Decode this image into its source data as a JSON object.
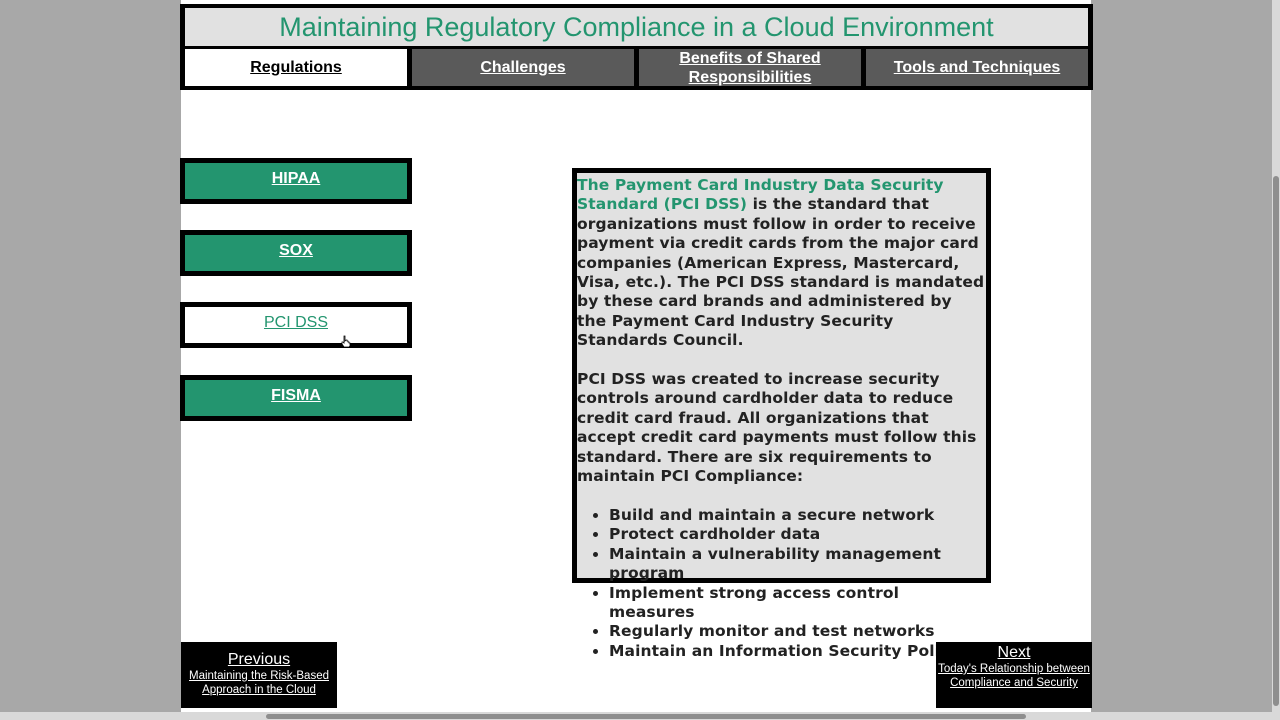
{
  "header": {
    "title": "Maintaining Regulatory Compliance in a Cloud Environment"
  },
  "tabs": [
    {
      "label": "Regulations"
    },
    {
      "label": "Challenges"
    },
    {
      "label": "Benefits of Shared Responsibilities"
    },
    {
      "label": "Tools and Techniques"
    }
  ],
  "sidebar": {
    "items": [
      {
        "label": "HIPAA"
      },
      {
        "label": "SOX"
      },
      {
        "label": "PCI DSS"
      },
      {
        "label": "FISMA"
      }
    ]
  },
  "content": {
    "highlight": "The Payment Card Industry Data Security Standard (PCI DSS)",
    "p1_rest": " is the standard that organizations must follow in order to receive payment via credit cards from the major card companies (American Express, Mastercard, Visa, etc.). The PCI DSS standard is mandated by these card brands and administered by the Payment Card Industry Security Standards Council.",
    "p2": "PCI DSS was created to increase security controls around cardholder data to reduce credit card fraud. All organizations that accept credit card payments must follow this standard. There are six requirements to maintain PCI Compliance:",
    "requirements": [
      "Build and maintain a secure network",
      "Protect cardholder data",
      "Maintain a vulnerability management program",
      "Implement strong access control measures",
      "Regularly monitor and test networks",
      "Maintain an Information Security Policy"
    ]
  },
  "nav": {
    "previous_label": "Previous",
    "previous_sub": "Maintaining the Risk-Based Approach in the Cloud",
    "next_label": "Next",
    "next_sub": "Today's Relationship between Compliance and Security"
  },
  "colors": {
    "accent": "#23956f",
    "tab_inactive": "#5a5a5a",
    "panel": "#e1e1e1"
  }
}
